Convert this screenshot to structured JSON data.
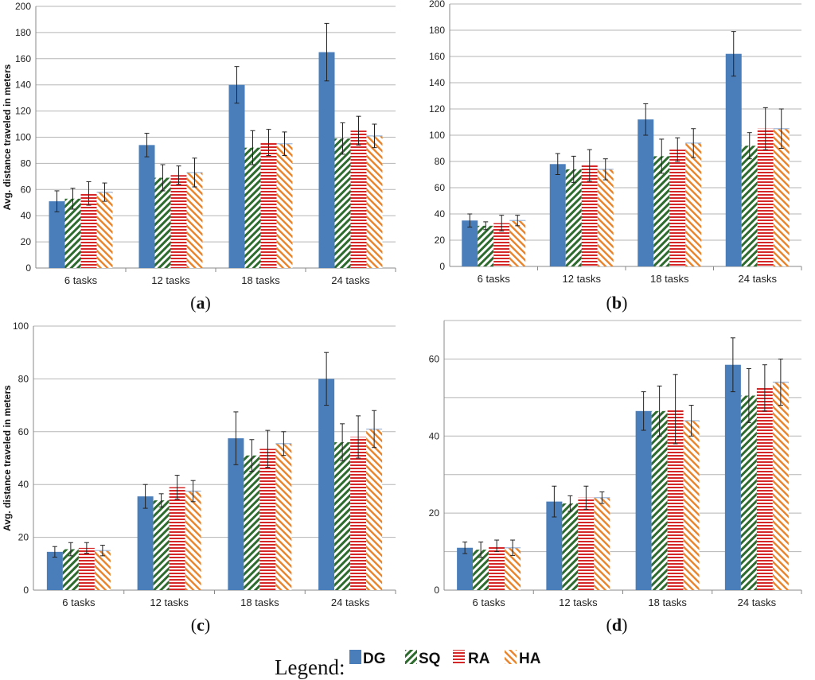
{
  "figure": {
    "legend": {
      "title": "Legend:",
      "entries": [
        {
          "key": "DG",
          "label": "DG"
        },
        {
          "key": "SQ",
          "label": "SQ"
        },
        {
          "key": "RA",
          "label": "RA"
        },
        {
          "key": "HA",
          "label": "HA"
        }
      ]
    },
    "colors": {
      "DG": "#4a7ebb",
      "SQ": "#2e7d32",
      "RA": "#d62728",
      "HA": "#e8832a",
      "axis": "#888888",
      "grid": "#b5b5b5",
      "error": "#222222"
    }
  },
  "chart_data": [
    {
      "id": "a",
      "type": "bar",
      "label_prefix": "(",
      "label_text": "a",
      "label_suffix": ")",
      "ylabel": "Avg. distance traveled in meters",
      "ylim": [
        0,
        200
      ],
      "yticks": [
        0,
        20,
        40,
        60,
        80,
        100,
        120,
        140,
        160,
        180,
        200
      ],
      "categories": [
        "6 tasks",
        "12 tasks",
        "18 tasks",
        "24 tasks"
      ],
      "series": [
        {
          "name": "DG",
          "values": [
            51,
            94,
            140,
            165
          ],
          "errors": [
            8,
            9,
            14,
            22
          ]
        },
        {
          "name": "SQ",
          "values": [
            53,
            69,
            92,
            99
          ],
          "errors": [
            8,
            10,
            13,
            12
          ]
        },
        {
          "name": "RA",
          "values": [
            57,
            71,
            96,
            105
          ],
          "errors": [
            9,
            7,
            10,
            11
          ]
        },
        {
          "name": "HA",
          "values": [
            58,
            73,
            95,
            101
          ],
          "errors": [
            7,
            11,
            9,
            9
          ]
        }
      ]
    },
    {
      "id": "b",
      "type": "bar",
      "label_prefix": "(",
      "label_text": "b",
      "label_suffix": ")",
      "ylabel": "",
      "ylim": [
        0,
        200
      ],
      "yticks": [
        0,
        20,
        40,
        60,
        80,
        100,
        120,
        140,
        160,
        180,
        200
      ],
      "ytick_labels": [
        "0",
        "20",
        "40",
        "60",
        "80",
        "100",
        "120",
        "140",
        "160",
        "180",
        "200"
      ],
      "categories": [
        "6 tasks",
        "12 tasks",
        "18 tasks",
        "24 tasks"
      ],
      "series": [
        {
          "name": "DG",
          "values": [
            35,
            78,
            112,
            162
          ],
          "errors": [
            5,
            8,
            12,
            17
          ]
        },
        {
          "name": "SQ",
          "values": [
            31,
            74,
            84,
            92
          ],
          "errors": [
            3,
            10,
            13,
            10
          ]
        },
        {
          "name": "RA",
          "values": [
            33,
            77,
            89,
            105
          ],
          "errors": [
            6,
            12,
            9,
            16
          ]
        },
        {
          "name": "HA",
          "values": [
            35,
            74,
            94,
            105
          ],
          "errors": [
            4,
            8,
            11,
            15
          ]
        }
      ]
    },
    {
      "id": "c",
      "type": "bar",
      "label_prefix": "(",
      "label_text": "c",
      "label_suffix": ")",
      "ylabel": "Avg. distance traveled in meters",
      "ylim": [
        0,
        100
      ],
      "yticks": [
        0,
        20,
        40,
        60,
        80,
        100
      ],
      "categories": [
        "6 tasks",
        "12 tasks",
        "18 tasks",
        "24 tasks"
      ],
      "series": [
        {
          "name": "DG",
          "values": [
            14.5,
            35.5,
            57.5,
            80
          ],
          "errors": [
            2,
            4.5,
            10,
            10
          ]
        },
        {
          "name": "SQ",
          "values": [
            15.5,
            34,
            51,
            56
          ],
          "errors": [
            2.5,
            2.5,
            6,
            7
          ]
        },
        {
          "name": "RA",
          "values": [
            16,
            39,
            53.5,
            58
          ],
          "errors": [
            2,
            4.5,
            7,
            8
          ]
        },
        {
          "name": "HA",
          "values": [
            15,
            37.5,
            55.5,
            61
          ],
          "errors": [
            2,
            4,
            4.5,
            7
          ]
        }
      ]
    },
    {
      "id": "d",
      "type": "bar",
      "label_prefix": "(",
      "label_text": "d",
      "label_suffix": ")",
      "ylabel": "",
      "ylim": [
        0,
        70
      ],
      "yticks": [
        0,
        20,
        40,
        60
      ],
      "grid_ticks": [
        0,
        10,
        20,
        30,
        40,
        50,
        60,
        70
      ],
      "categories": [
        "6 tasks",
        "12 tasks",
        "18 tasks",
        "24 tasks"
      ],
      "series": [
        {
          "name": "DG",
          "values": [
            11,
            23,
            46.5,
            58.5
          ],
          "errors": [
            1.5,
            4,
            5,
            7
          ]
        },
        {
          "name": "SQ",
          "values": [
            10.5,
            22.5,
            46.5,
            50.5
          ],
          "errors": [
            2,
            2,
            6.5,
            7
          ]
        },
        {
          "name": "RA",
          "values": [
            11.5,
            24,
            47,
            52.5
          ],
          "errors": [
            1.5,
            3,
            9,
            6
          ]
        },
        {
          "name": "HA",
          "values": [
            11,
            24,
            44,
            54
          ],
          "errors": [
            2,
            1.5,
            4,
            6
          ]
        }
      ]
    }
  ]
}
